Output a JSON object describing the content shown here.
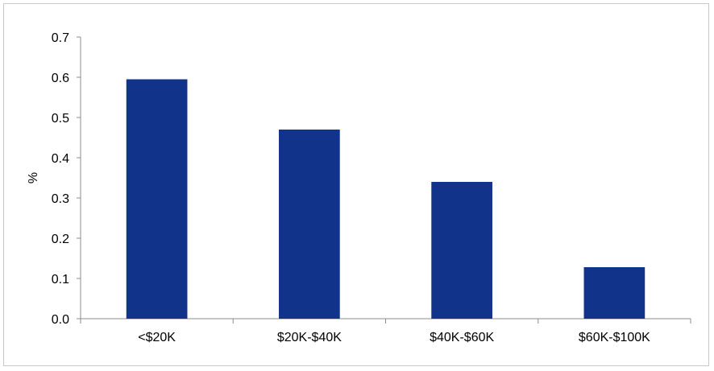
{
  "chart_data": {
    "type": "bar",
    "title": "",
    "xlabel": "",
    "ylabel": "%",
    "categories": [
      "<$20K",
      "$20K-$40K",
      "$40K-$60K",
      "$60K-$100K"
    ],
    "values": [
      0.595,
      0.47,
      0.34,
      0.128
    ],
    "ylim": [
      0,
      0.7
    ],
    "yticks": [
      "0.0",
      "0.1",
      "0.2",
      "0.3",
      "0.4",
      "0.5",
      "0.6",
      "0.7"
    ],
    "grid": false,
    "legend": "none",
    "bar_color": "#12338a",
    "axis_color": "#8c8c8c"
  }
}
